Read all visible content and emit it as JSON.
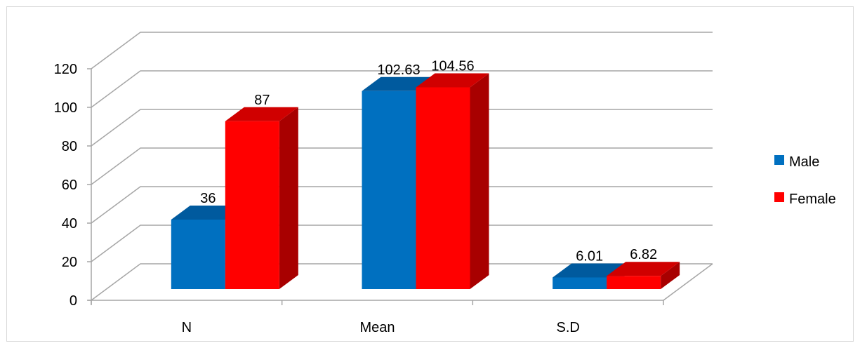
{
  "chart_data": {
    "type": "bar",
    "categories": [
      "N",
      "Mean",
      "S.D"
    ],
    "series": [
      {
        "name": "Male",
        "values": [
          36,
          102.63,
          6.01
        ],
        "labels": [
          "36",
          "102.63",
          "6.01"
        ],
        "color": "#0070c0",
        "side_color": "#004f8c",
        "top_color": "#005a9e"
      },
      {
        "name": "Female",
        "values": [
          87,
          104.56,
          6.82
        ],
        "labels": [
          "87",
          "104.56",
          "6.82"
        ],
        "color": "#ff0000",
        "side_color": "#a80000",
        "top_color": "#d00000"
      }
    ],
    "y_ticks": [
      "0",
      "20",
      "40",
      "60",
      "80",
      "100",
      "120"
    ],
    "ylim": [
      0,
      120
    ],
    "grid": true,
    "legend_position": "right",
    "style": "3d-clustered-column"
  }
}
